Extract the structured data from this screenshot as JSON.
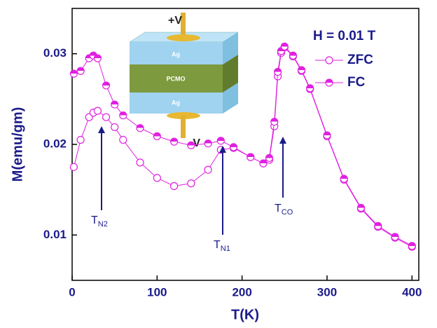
{
  "chart_data": {
    "type": "scatter-line",
    "xlabel": "T(K)",
    "ylabel": "M(emu/gm)",
    "xlim": [
      0,
      408
    ],
    "ylim": [
      0.005,
      0.035
    ],
    "xticks": [
      0,
      100,
      200,
      300,
      400
    ],
    "yticks": [
      0.01,
      0.02,
      0.03
    ],
    "field_label": "H = 0.01 T",
    "legend": "upper right",
    "x": [
      2,
      10,
      20,
      25,
      30,
      40,
      50,
      60,
      80,
      100,
      120,
      140,
      160,
      175,
      190,
      210,
      225,
      232,
      238,
      242,
      246,
      250,
      260,
      270,
      280,
      300,
      320,
      340,
      360,
      380,
      400
    ],
    "series": [
      {
        "name": "ZFC",
        "color": "#e020e0",
        "marker": "open",
        "values": [
          0.0175,
          0.0205,
          0.023,
          0.0235,
          0.0237,
          0.023,
          0.0219,
          0.0205,
          0.018,
          0.0163,
          0.0154,
          0.0157,
          0.0172,
          0.0194,
          0.0196,
          0.0186,
          0.0179,
          0.0183,
          0.022,
          0.0275,
          0.0301,
          0.0307,
          0.0297,
          0.0281,
          0.0261,
          0.0209,
          0.0161,
          0.0129,
          0.0109,
          0.0097,
          0.0087
        ]
      },
      {
        "name": "FC",
        "color": "#e020e0",
        "marker": "half",
        "values": [
          0.0278,
          0.0281,
          0.0295,
          0.0298,
          0.0295,
          0.0265,
          0.0244,
          0.0232,
          0.0218,
          0.0209,
          0.0203,
          0.0199,
          0.0201,
          0.0204,
          0.0197,
          0.0186,
          0.0179,
          0.0185,
          0.0225,
          0.028,
          0.0303,
          0.0308,
          0.0298,
          0.0282,
          0.0262,
          0.021,
          0.0162,
          0.013,
          0.011,
          0.0098,
          0.0088
        ]
      }
    ],
    "annotations": [
      {
        "text": "T",
        "subscript": "N2"
      },
      {
        "text": "T",
        "subscript": "N1"
      },
      {
        "text": "T",
        "subscript": "CO"
      }
    ],
    "inset": {
      "top_voltage": "+V",
      "bottom_voltage": "-V",
      "layers": [
        "Ag",
        "PCMO",
        "Ag"
      ]
    }
  }
}
